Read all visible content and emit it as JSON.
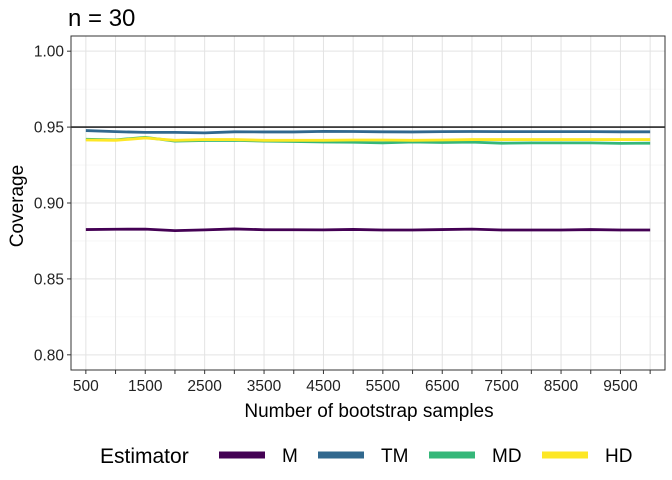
{
  "chart_data": {
    "type": "line",
    "title": "n = 30",
    "xlabel": "Number of bootstrap samples",
    "ylabel": "Coverage",
    "xlim": [
      250,
      10250
    ],
    "ylim": [
      0.79,
      1.01
    ],
    "x_ticks": [
      500,
      1500,
      2500,
      3500,
      4500,
      5500,
      6500,
      7500,
      8500,
      9500
    ],
    "x_ticks_unlabeled": [
      1000,
      2000,
      3000,
      4000,
      5000,
      6000,
      7000,
      8000,
      9000,
      10000
    ],
    "y_ticks": [
      0.8,
      0.85,
      0.9,
      0.95,
      1.0
    ],
    "y_tick_labels": [
      "0.80",
      "0.85",
      "0.90",
      "0.95",
      "1.00"
    ],
    "grid": true,
    "reference_line": {
      "y": 0.95,
      "color": "#000000"
    },
    "x": [
      500,
      1000,
      1500,
      2000,
      2500,
      3000,
      3500,
      4000,
      4500,
      5000,
      5500,
      6000,
      6500,
      7000,
      7500,
      8000,
      8500,
      9000,
      9500,
      10000
    ],
    "series": [
      {
        "name": "M",
        "color": "#440154",
        "values": [
          0.8825,
          0.8827,
          0.8828,
          0.8818,
          0.8823,
          0.8829,
          0.8824,
          0.8824,
          0.8823,
          0.8826,
          0.8822,
          0.8822,
          0.8825,
          0.8828,
          0.8822,
          0.8822,
          0.8822,
          0.8825,
          0.8822,
          0.8822
        ]
      },
      {
        "name": "TM",
        "color": "#31688E",
        "values": [
          0.9477,
          0.947,
          0.9465,
          0.9465,
          0.9462,
          0.9469,
          0.9468,
          0.9468,
          0.9472,
          0.9471,
          0.9469,
          0.9468,
          0.947,
          0.9471,
          0.947,
          0.947,
          0.947,
          0.947,
          0.9469,
          0.9469
        ]
      },
      {
        "name": "MD",
        "color": "#35B779",
        "values": [
          0.942,
          0.9416,
          0.9432,
          0.9408,
          0.9412,
          0.9413,
          0.9408,
          0.9405,
          0.9402,
          0.94,
          0.9396,
          0.9402,
          0.9399,
          0.9401,
          0.9394,
          0.9396,
          0.9396,
          0.9396,
          0.9393,
          0.9394
        ]
      },
      {
        "name": "HD",
        "color": "#FDE725",
        "values": [
          0.9415,
          0.9413,
          0.9428,
          0.9413,
          0.9418,
          0.9418,
          0.9413,
          0.9413,
          0.9413,
          0.9415,
          0.9415,
          0.9413,
          0.9415,
          0.9418,
          0.9418,
          0.9418,
          0.9418,
          0.9418,
          0.9418,
          0.9418
        ]
      }
    ],
    "legend": {
      "title": "Estimator",
      "position": "bottom",
      "items": [
        "M",
        "TM",
        "MD",
        "HD"
      ]
    }
  }
}
